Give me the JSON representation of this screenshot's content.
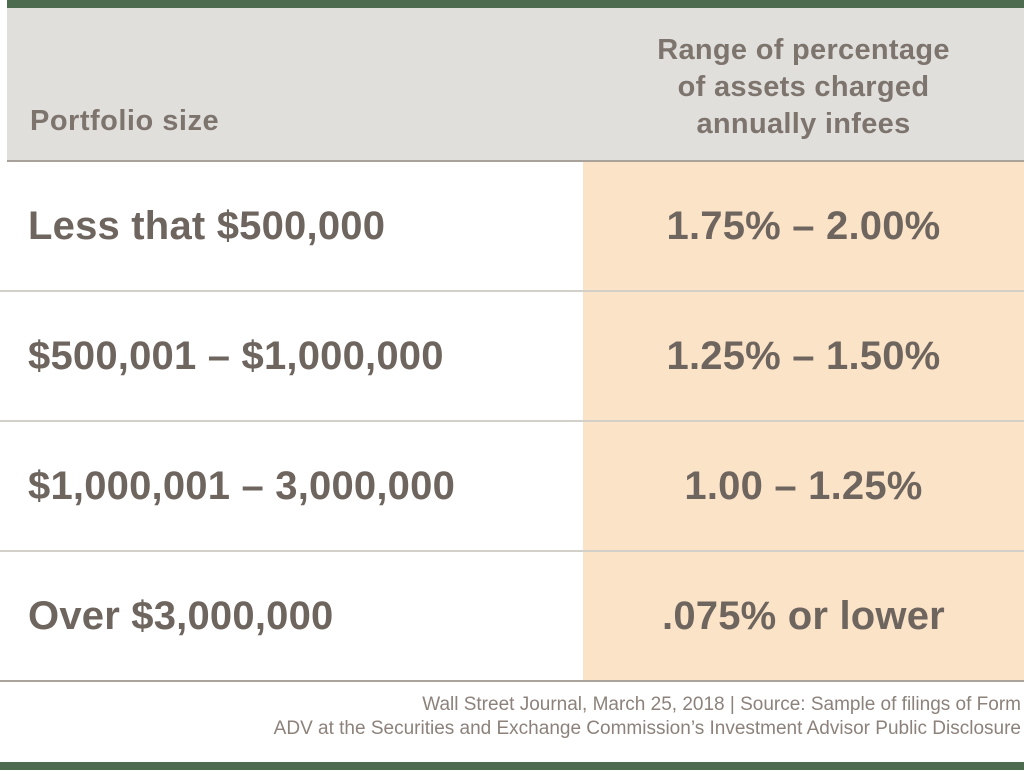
{
  "colors": {
    "accent_green_bar": "#4d6b4f",
    "header_background": "#e0dfdc",
    "fee_column_background": "#fbe3c8",
    "text_primary": "#6e655f",
    "text_header": "#7e746e",
    "text_footer": "#8c827b"
  },
  "header": {
    "left_label": "Portfolio size",
    "right_lines": [
      "Range of percentage",
      "of assets charged",
      "annually infees"
    ]
  },
  "rows": [
    {
      "portfolio": "Less that $500,000",
      "fee": "1.75% – 2.00%"
    },
    {
      "portfolio": "$500,001 – $1,000,000",
      "fee": "1.25% – 1.50%"
    },
    {
      "portfolio": "$1,000,001 – 3,000,000",
      "fee": "1.00 – 1.25%"
    },
    {
      "portfolio": "Over $3,000,000",
      "fee": ".075% or lower"
    }
  ],
  "footer": {
    "line1": "Wall Street Journal, March 25, 2018 | Source: Sample of filings of Form",
    "line2": "ADV at the Securities and Exchange Commission’s Investment Advisor Public Disclosure"
  },
  "chart_data": {
    "type": "table",
    "columns": [
      "Portfolio size",
      "Range of percentage of assets charged annually infees"
    ],
    "rows": [
      [
        "Less that $500,000",
        "1.75% – 2.00%"
      ],
      [
        "$500,001 – $1,000,000",
        "1.25% – 1.50%"
      ],
      [
        "$1,000,001 – 3,000,000",
        "1.00 – 1.25%"
      ],
      [
        "Over $3,000,000",
        ".075% or lower"
      ]
    ],
    "source": "Wall Street Journal, March 25, 2018 | Source: Sample of filings of Form ADV at the Securities and Exchange Commission’s Investment Advisor Public Disclosure",
    "layout_hints": {
      "fee_column_highlighted": true,
      "header_background": "#e0dfdc",
      "fee_column_background": "#fbe3c8"
    }
  }
}
